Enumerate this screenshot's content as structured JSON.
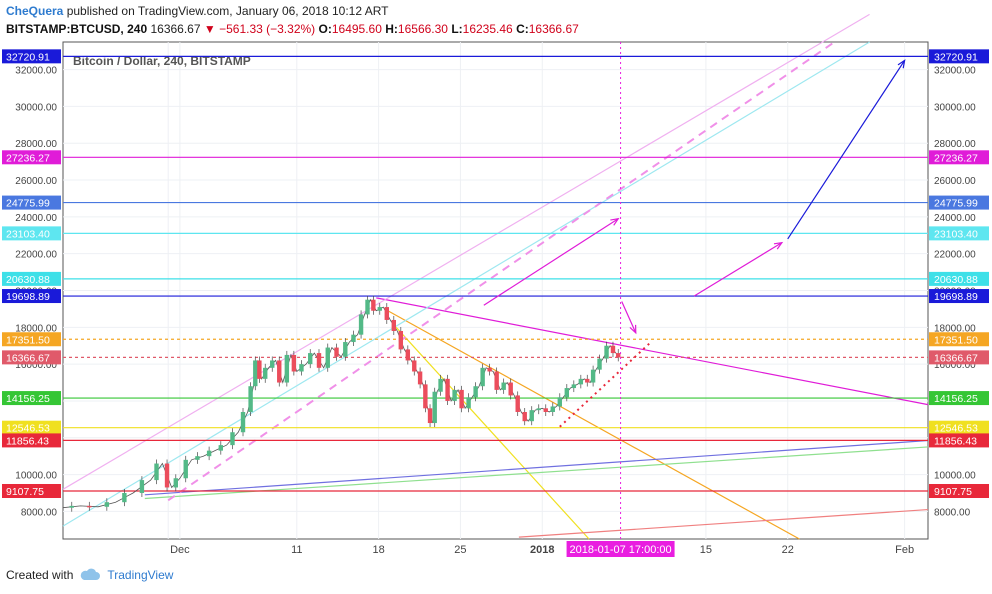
{
  "header": {
    "author": "CheQuera",
    "published": "published on TradingView.com, January 06, 2018 10:12 ART",
    "symbol": "BITSTAMP:BTCUSD, 240",
    "last": "16366.67",
    "change": "▼ −561.33 (−3.32%)",
    "o_label": "O:",
    "o": "16495.60",
    "h_label": "H:",
    "h": "16566.30",
    "l_label": "L:",
    "l": "16235.46",
    "c_label": "C:",
    "c": "16366.67"
  },
  "footer": {
    "created_with": "Created with",
    "brand": "TradingView"
  },
  "chart_data": {
    "type": "candlestick",
    "title": "Bitcoin / Dollar, 240, BITSTAMP",
    "ylim": [
      6500,
      33500
    ],
    "y_ticks": [
      8000,
      10000,
      12000,
      14000,
      16000,
      18000,
      20000,
      22000,
      24000,
      26000,
      28000,
      30000,
      32000
    ],
    "y_tick_labels": [
      "8000.00",
      "10000.00",
      "12000.00",
      "14000.00",
      "16000.00",
      "18000.00",
      "20000.00",
      "22000.00",
      "24000.00",
      "26000.00",
      "28000.00",
      "30000.00",
      "32000.00"
    ],
    "x_labels": [
      {
        "day": 30,
        "label": ""
      },
      {
        "day": 31,
        "label": "Dec"
      },
      {
        "day": 41,
        "label": "11"
      },
      {
        "day": 48,
        "label": "18"
      },
      {
        "day": 55,
        "label": "25"
      },
      {
        "day": 62,
        "label": "2018"
      },
      {
        "day": 76,
        "label": "15"
      },
      {
        "day": 83,
        "label": "22"
      },
      {
        "day": 93,
        "label": "Feb"
      }
    ],
    "x_range_days": [
      21,
      95
    ],
    "date_marker": {
      "day": 68.7,
      "label": "2018-01-07 17:00:00",
      "color": "#e91ee0"
    },
    "price_levels": [
      {
        "value": 32720.91,
        "label": "32720.91",
        "color": "#1a1ad9"
      },
      {
        "value": 27236.27,
        "label": "27236.27",
        "color": "#e01cd8"
      },
      {
        "value": 24775.99,
        "label": "24775.99",
        "color": "#4a78e0"
      },
      {
        "value": 23103.4,
        "label": "23103.40",
        "color": "#5ee6f0"
      },
      {
        "value": 20630.88,
        "label": "20630.88",
        "color": "#3ee0e8"
      },
      {
        "value": 19698.89,
        "label": "19698.89",
        "color": "#1a1ad9"
      },
      {
        "value": 17351.5,
        "label": "17351.50",
        "color": "#f5a623"
      },
      {
        "value": 16366.67,
        "label": "16366.67",
        "color": "#e05a6a"
      },
      {
        "value": 14156.25,
        "label": "14156.25",
        "color": "#35c635"
      },
      {
        "value": 12546.53,
        "label": "12546.53",
        "color": "#f0e020"
      },
      {
        "value": 11856.43,
        "label": "11856.43",
        "color": "#e8283a"
      },
      {
        "value": 9107.75,
        "label": "9107.75",
        "color": "#e8283a"
      }
    ],
    "price_path": [
      [
        21.0,
        8200
      ],
      [
        22.5,
        8300
      ],
      [
        24.0,
        8250
      ],
      [
        25.5,
        8500
      ],
      [
        27.0,
        9000
      ],
      [
        28.5,
        9700
      ],
      [
        29.5,
        10600
      ],
      [
        30.3,
        9300
      ],
      [
        31.0,
        9800
      ],
      [
        32.0,
        10800
      ],
      [
        33.0,
        11000
      ],
      [
        34.0,
        11300
      ],
      [
        35.0,
        11600
      ],
      [
        36.0,
        12300
      ],
      [
        36.8,
        13400
      ],
      [
        37.3,
        14800
      ],
      [
        37.6,
        16200
      ],
      [
        38.0,
        15200
      ],
      [
        38.6,
        15800
      ],
      [
        39.2,
        16200
      ],
      [
        39.8,
        15000
      ],
      [
        40.5,
        16500
      ],
      [
        41.0,
        15600
      ],
      [
        41.8,
        16000
      ],
      [
        42.5,
        16600
      ],
      [
        43.3,
        15800
      ],
      [
        44.0,
        16900
      ],
      [
        44.8,
        16400
      ],
      [
        45.5,
        17200
      ],
      [
        46.2,
        17600
      ],
      [
        46.8,
        18700
      ],
      [
        47.3,
        19500
      ],
      [
        47.8,
        18900
      ],
      [
        48.4,
        19100
      ],
      [
        49.0,
        18400
      ],
      [
        49.6,
        17800
      ],
      [
        50.2,
        16800
      ],
      [
        50.8,
        16200
      ],
      [
        51.3,
        15600
      ],
      [
        51.8,
        14900
      ],
      [
        52.2,
        13600
      ],
      [
        52.6,
        12800
      ],
      [
        53.0,
        14500
      ],
      [
        53.6,
        15200
      ],
      [
        54.2,
        14000
      ],
      [
        54.8,
        14600
      ],
      [
        55.4,
        13600
      ],
      [
        56.0,
        14200
      ],
      [
        56.6,
        14800
      ],
      [
        57.2,
        15800
      ],
      [
        57.8,
        15600
      ],
      [
        58.4,
        14600
      ],
      [
        59.0,
        15000
      ],
      [
        59.6,
        14300
      ],
      [
        60.2,
        13400
      ],
      [
        60.8,
        12900
      ],
      [
        61.4,
        13500
      ],
      [
        62.0,
        13600
      ],
      [
        62.6,
        13400
      ],
      [
        63.2,
        13700
      ],
      [
        63.8,
        14200
      ],
      [
        64.4,
        14700
      ],
      [
        65.0,
        14900
      ],
      [
        65.6,
        15200
      ],
      [
        66.1,
        15000
      ],
      [
        66.6,
        15700
      ],
      [
        67.2,
        16300
      ],
      [
        67.8,
        17000
      ],
      [
        68.3,
        16600
      ],
      [
        68.7,
        16366.67
      ]
    ],
    "trend_lines": [
      {
        "name": "magenta-descending",
        "from": [
          47.8,
          19600
        ],
        "to": [
          95,
          13800
        ],
        "color": "#e01cd8"
      },
      {
        "name": "orange-descending",
        "from": [
          48.5,
          19000
        ],
        "to": [
          84,
          6500
        ],
        "color": "#f5a623"
      },
      {
        "name": "yellow-descending",
        "from": [
          49.5,
          18000
        ],
        "to": [
          66,
          6500
        ],
        "color": "#f0e020"
      },
      {
        "name": "blue-rising",
        "from": [
          28,
          8900
        ],
        "to": [
          95,
          11850
        ],
        "color": "#7070e0"
      },
      {
        "name": "green-rising",
        "from": [
          28,
          8700
        ],
        "to": [
          95,
          11500
        ],
        "color": "#8fe08f"
      },
      {
        "name": "red-rising",
        "from": [
          60,
          6600
        ],
        "to": [
          95,
          8100
        ],
        "color": "#f08080"
      },
      {
        "name": "cyan-channel",
        "from": [
          21,
          7200
        ],
        "to": [
          90,
          33500
        ],
        "color": "#9ee8f0"
      },
      {
        "name": "pink-channel",
        "from": [
          21,
          9200
        ],
        "to": [
          90,
          35000
        ],
        "color": "#f0b0f0"
      }
    ],
    "projection_arrows": [
      {
        "from": [
          57,
          19200
        ],
        "to": [
          68.5,
          23900
        ],
        "color": "#e01cd8"
      },
      {
        "from": [
          68.8,
          19400
        ],
        "to": [
          70,
          17700
        ],
        "color": "#e01cd8"
      },
      {
        "from": [
          75,
          19700
        ],
        "to": [
          82.5,
          22600
        ],
        "color": "#e01cd8"
      },
      {
        "from": [
          83,
          22800
        ],
        "to": [
          93,
          32500
        ],
        "color": "#1a1ad9"
      }
    ]
  }
}
